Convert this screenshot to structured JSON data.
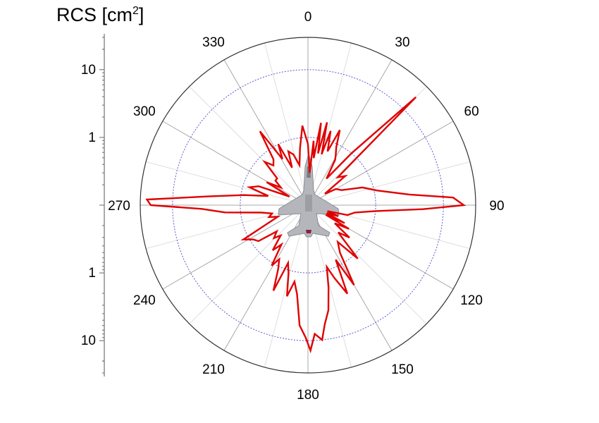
{
  "chart_data": {
    "type": "polar-line",
    "title": "RCS [cm",
    "title_superscript": "2",
    "title_suffix": "]",
    "angle_labels": [
      "0",
      "30",
      "60",
      "90",
      "120",
      "150",
      "180",
      "210",
      "240",
      "270",
      "300",
      "330"
    ],
    "angle_ticks_deg": [
      0,
      30,
      60,
      90,
      120,
      150,
      180,
      210,
      240,
      270,
      300,
      330
    ],
    "radial_axis": {
      "scale": "log",
      "units": "cm2",
      "range": [
        0.1,
        30
      ],
      "tick_labels_top": [
        "10",
        "1"
      ],
      "tick_labels_bottom": [
        "1",
        "10"
      ],
      "gridlines": [
        1,
        10
      ]
    },
    "center_image": "fighter-jet-top-view",
    "series": [
      {
        "color": "#e00000",
        "points": [
          [
            0,
            0.8
          ],
          [
            3,
            0.3
          ],
          [
            5,
            0.9
          ],
          [
            7,
            0.5
          ],
          [
            9,
            1.7
          ],
          [
            11,
            0.6
          ],
          [
            13,
            1.8
          ],
          [
            15,
            0.6
          ],
          [
            17,
            1.4
          ],
          [
            20,
            0.7
          ],
          [
            23,
            1.6
          ],
          [
            26,
            0.9
          ],
          [
            29,
            0.7
          ],
          [
            31,
            0.6
          ],
          [
            35,
            0.3
          ],
          [
            40,
            1.0
          ],
          [
            45,
            18.0
          ],
          [
            47,
            0.4
          ],
          [
            52,
            0.5
          ],
          [
            56,
            0.2
          ],
          [
            60,
            0.3
          ],
          [
            66,
            0.35
          ],
          [
            72,
            0.7
          ],
          [
            78,
            1.1
          ],
          [
            84,
            3.2
          ],
          [
            87,
            14.0
          ],
          [
            90,
            20.0
          ],
          [
            92,
            5.0
          ],
          [
            95,
            1.0
          ],
          [
            99,
            0.5
          ],
          [
            104,
            0.4
          ],
          [
            107,
            0.2
          ],
          [
            110,
            0.3
          ],
          [
            113,
            0.2
          ],
          [
            116,
            0.4
          ],
          [
            118,
            0.2
          ],
          [
            120,
            0.5
          ],
          [
            124,
            0.3
          ],
          [
            128,
            0.6
          ],
          [
            132,
            0.4
          ],
          [
            137,
            1.2
          ],
          [
            141,
            0.5
          ],
          [
            146,
            0.7
          ],
          [
            150,
            2.3
          ],
          [
            153,
            0.8
          ],
          [
            156,
            2.7
          ],
          [
            160,
            1.4
          ],
          [
            163,
            0.9
          ],
          [
            166,
            1.8
          ],
          [
            169,
            3.8
          ],
          [
            172,
            6.0
          ],
          [
            174,
            10.0
          ],
          [
            177,
            8.0
          ],
          [
            179,
            14.0
          ],
          [
            181,
            9.0
          ],
          [
            184,
            6.0
          ],
          [
            187,
            2.1
          ],
          [
            190,
            1.4
          ],
          [
            193,
            2.4
          ],
          [
            196,
            1.1
          ],
          [
            199,
            0.8
          ],
          [
            202,
            2.3
          ],
          [
            205,
            1.1
          ],
          [
            208,
            0.8
          ],
          [
            211,
            1.1
          ],
          [
            214,
            0.5
          ],
          [
            218,
            0.7
          ],
          [
            222,
            0.4
          ],
          [
            226,
            0.5
          ],
          [
            230,
            0.4
          ],
          [
            234,
            0.8
          ],
          [
            238,
            0.9
          ],
          [
            242,
            1.2
          ],
          [
            245,
            0.5
          ],
          [
            249,
            0.3
          ],
          [
            253,
            0.4
          ],
          [
            257,
            0.35
          ],
          [
            261,
            0.5
          ],
          [
            265,
            1.7
          ],
          [
            268,
            3.7
          ],
          [
            270,
            21.0
          ],
          [
            272,
            24.0
          ],
          [
            275,
            3.0
          ],
          [
            279,
            0.9
          ],
          [
            283,
            0.4
          ],
          [
            287,
            0.8
          ],
          [
            291,
            0.6
          ],
          [
            295,
            0.2
          ],
          [
            299,
            0.5
          ],
          [
            303,
            0.3
          ],
          [
            307,
            0.4
          ],
          [
            311,
            0.4
          ],
          [
            315,
            0.8
          ],
          [
            319,
            0.6
          ],
          [
            323,
            0.7
          ],
          [
            327,
            2.0
          ],
          [
            331,
            0.6
          ],
          [
            334,
            1.0
          ],
          [
            337,
            0.4
          ],
          [
            340,
            0.7
          ],
          [
            344,
            0.6
          ],
          [
            348,
            0.4
          ],
          [
            352,
            0.7
          ],
          [
            356,
            1.5
          ],
          [
            360,
            0.8
          ]
        ]
      }
    ]
  }
}
